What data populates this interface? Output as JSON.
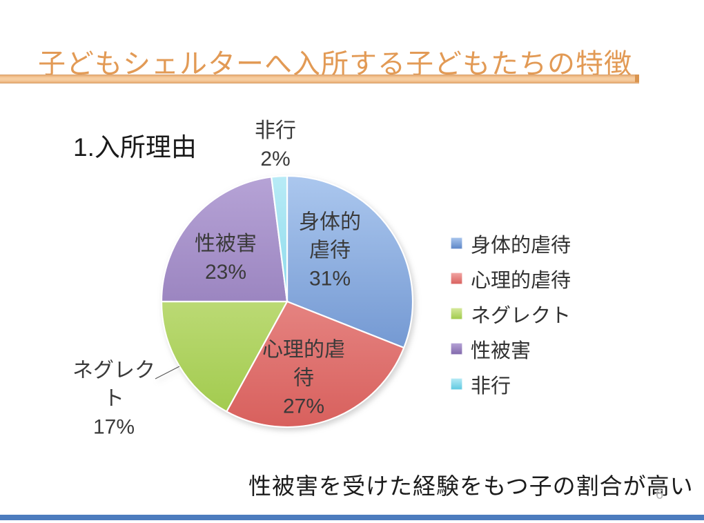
{
  "slide": {
    "title": "子どもシェルターへ入所する子どもたちの特徴",
    "section_heading": "1.入所理由",
    "conclusion": "性被害を受けた経験をもつ子の割合が高い",
    "page_number": "6",
    "title_color": "#e29a55",
    "title_bar_color_light": "#f6cda0",
    "title_bar_color_dark": "#e9ad74",
    "title_bar_cap_color": "#d9944f",
    "bottom_bar_color": "#4c7cbe"
  },
  "chart_data": {
    "type": "pie",
    "title": "1.入所理由",
    "categories": [
      "身体的虐待",
      "心理的虐待",
      "ネグレクト",
      "性被害",
      "非行"
    ],
    "values": [
      31,
      27,
      17,
      23,
      2
    ],
    "unit": "%",
    "start_angle_deg": 0,
    "direction": "clockwise",
    "legend_position": "right",
    "colors": [
      "#5b84c6",
      "#d8605d",
      "#9fc94a",
      "#8168ab",
      "#5ec8e0"
    ],
    "colors_light": [
      "#abc7ee",
      "#f2a6a4",
      "#d7ea9e",
      "#b6a3d6",
      "#b8ebf6"
    ],
    "labels": [
      {
        "category": "身体的虐待",
        "lines": [
          "身体的",
          "虐待",
          "31%"
        ],
        "placement": "inside"
      },
      {
        "category": "心理的虐待",
        "lines": [
          "心理的虐",
          "待",
          "27%"
        ],
        "placement": "inside"
      },
      {
        "category": "ネグレクト",
        "lines": [
          "ネグレク",
          "ト",
          "17%"
        ],
        "placement": "outside-left"
      },
      {
        "category": "性被害",
        "lines": [
          "性被害",
          "23%"
        ],
        "placement": "inside"
      },
      {
        "category": "非行",
        "lines": [
          "非行",
          "2%"
        ],
        "placement": "outside-top"
      }
    ]
  },
  "legend": {
    "items": [
      {
        "label": "身体的虐待",
        "color": "#5b84c6"
      },
      {
        "label": "心理的虐待",
        "color": "#d8605d"
      },
      {
        "label": "ネグレクト",
        "color": "#9fc94a"
      },
      {
        "label": "性被害",
        "color": "#8168ab"
      },
      {
        "label": "非行",
        "color": "#5ec8e0"
      }
    ]
  }
}
